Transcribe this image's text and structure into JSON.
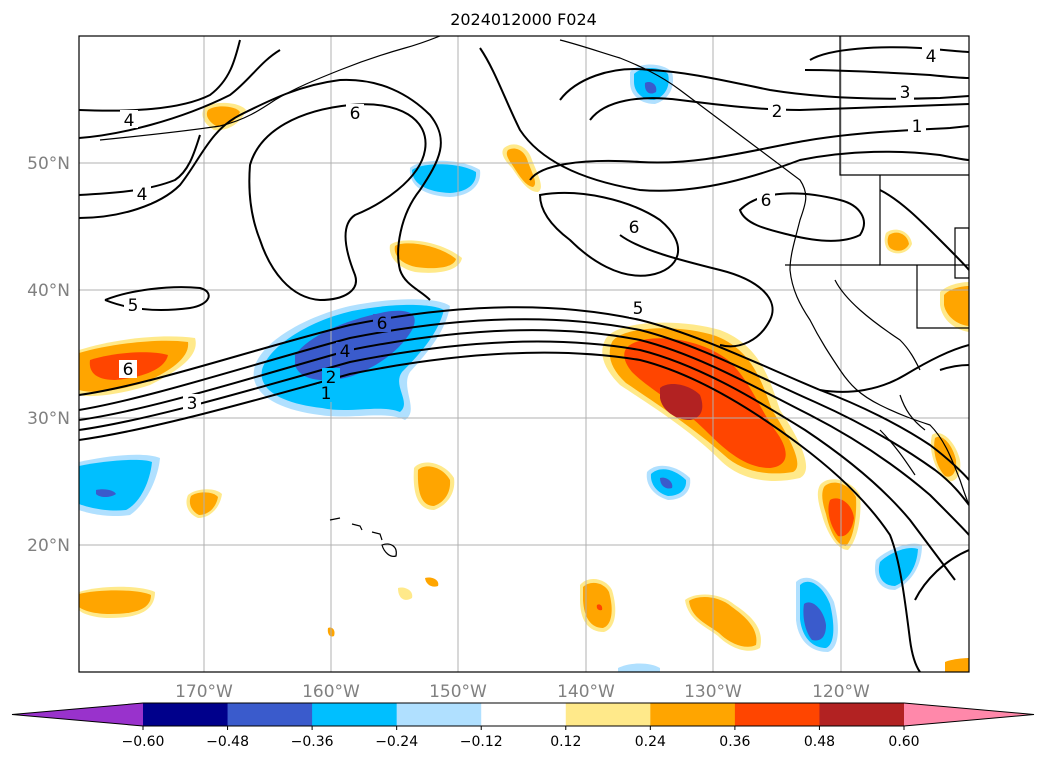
{
  "title": "2024012000 F024",
  "lat_labels": [
    "50°N",
    "40°N",
    "30°N",
    "20°N"
  ],
  "lon_labels": [
    "170°W",
    "160°W",
    "150°W",
    "140°W",
    "130°W",
    "120°W"
  ],
  "colorbar": {
    "colors": [
      "#9932cc",
      "#00008b",
      "#3a5bcc",
      "#00bfff",
      "#b0e0ff",
      "#ffffff",
      "#ffe98a",
      "#ffa500",
      "#ff4500",
      "#b22222",
      "#ff88aa"
    ],
    "tick_labels": [
      "−0.60",
      "−0.48",
      "−0.36",
      "−0.24",
      "−0.12",
      "0.12",
      "0.24",
      "0.36",
      "0.48",
      "0.60"
    ]
  },
  "contour_labels": [
    "4",
    "6",
    "4",
    "5",
    "6",
    "3",
    "4",
    "2",
    "1",
    "5",
    "6",
    "6",
    "4",
    "3",
    "2",
    "1",
    "6"
  ],
  "colors": {
    "gridline": "#b0b0b0",
    "contour": "#000000",
    "coast": "#000000"
  }
}
